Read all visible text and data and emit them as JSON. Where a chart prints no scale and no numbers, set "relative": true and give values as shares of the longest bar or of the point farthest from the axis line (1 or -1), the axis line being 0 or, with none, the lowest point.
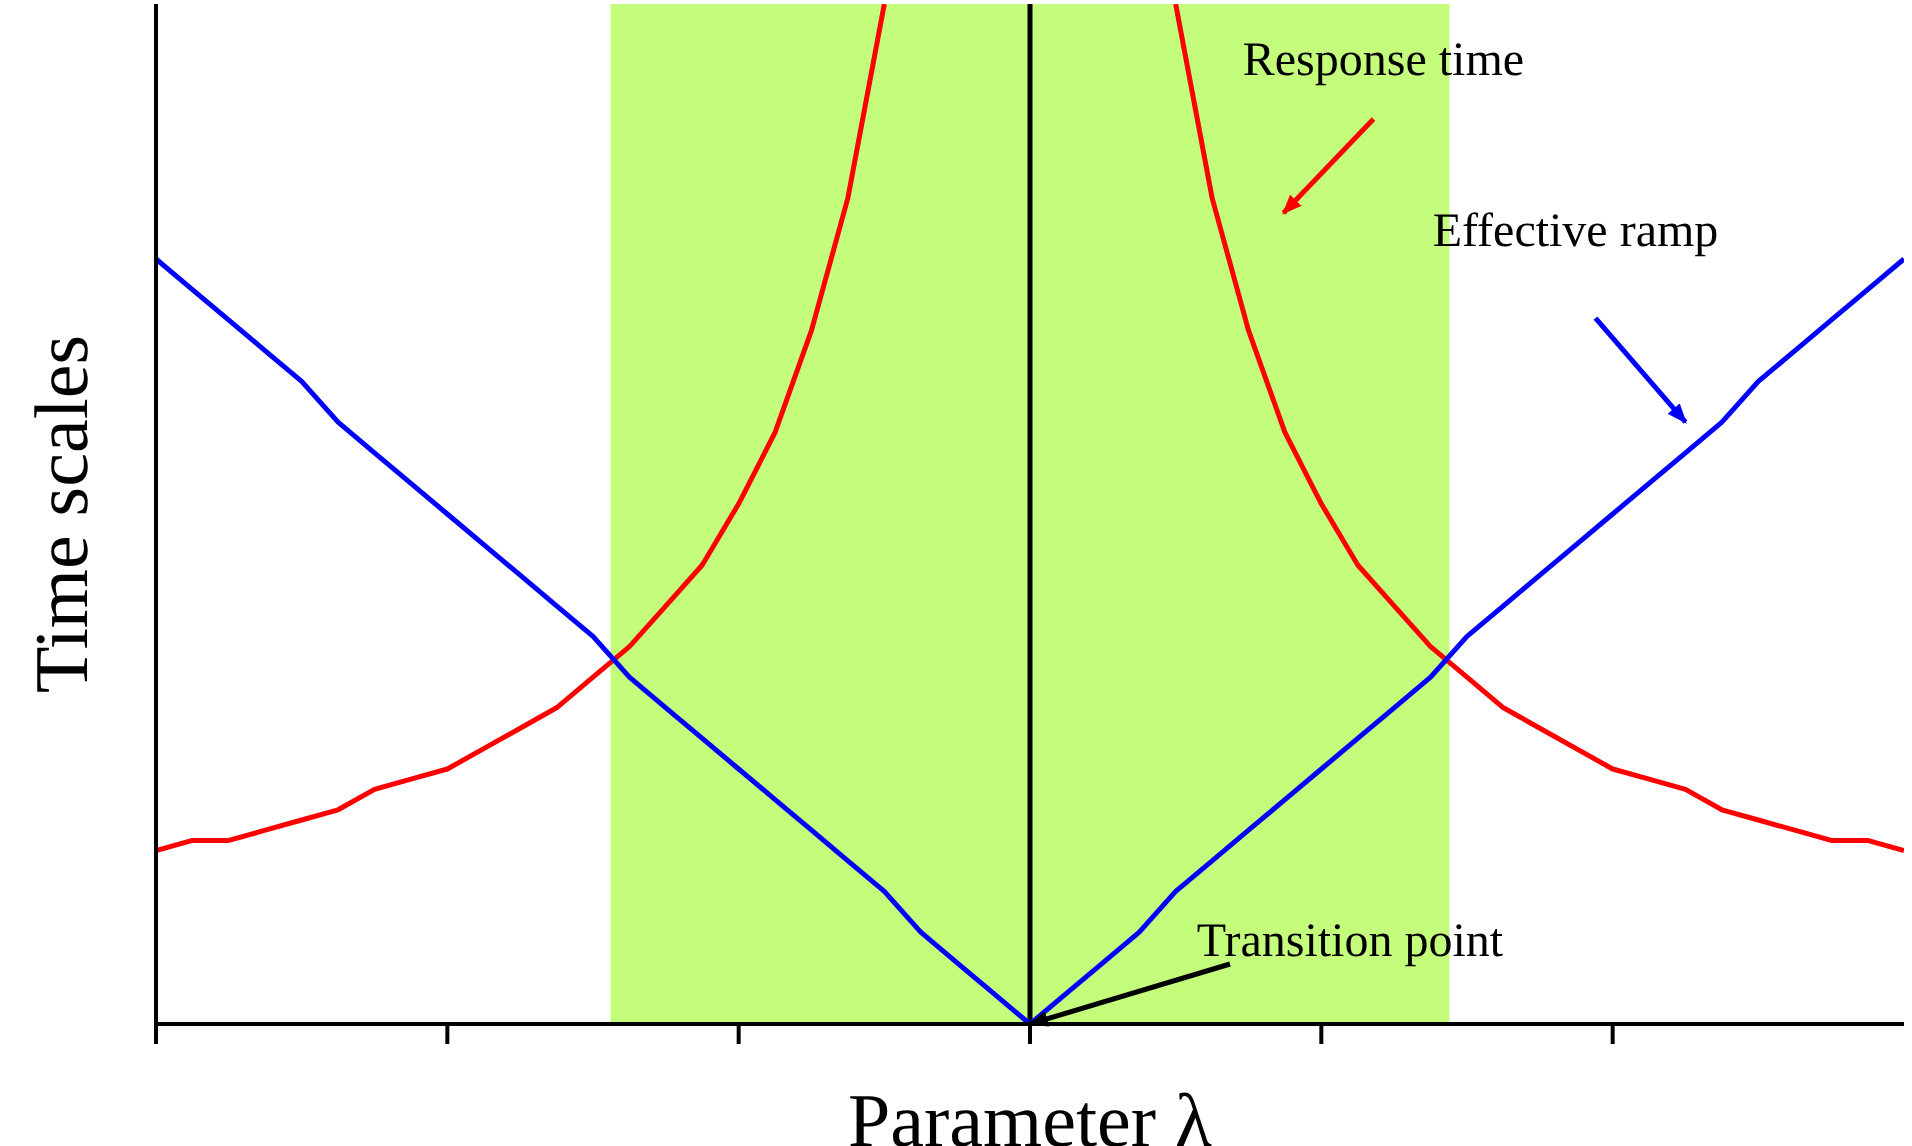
{
  "chart_data": {
    "type": "line",
    "relative": true,
    "xlabel": "Parameter λ",
    "ylabel": "Time scales",
    "marker": "none",
    "line_style": "solid",
    "categories": [
      null,
      null,
      null,
      null,
      null,
      null,
      null,
      null,
      null,
      null,
      null,
      null,
      null,
      null,
      null,
      null,
      null,
      null,
      null,
      null,
      null,
      null,
      null,
      null,
      null,
      null,
      null,
      null,
      null,
      null,
      null,
      null,
      null,
      null,
      null,
      null,
      null,
      null,
      null,
      null,
      null,
      null,
      null,
      null,
      null,
      null,
      null,
      null,
      null
    ],
    "series": [
      {
        "color": "#ff0000",
        "values": [
          0.17,
          0.18,
          0.18,
          0.19,
          0.2,
          0.21,
          0.23,
          0.24,
          0.25,
          0.27,
          0.29,
          0.31,
          0.34,
          0.37,
          0.41,
          0.45,
          0.51,
          0.58,
          0.68,
          0.81,
          1.0,
          null,
          null,
          null,
          null,
          null,
          null,
          null,
          1.0,
          0.81,
          0.68,
          0.58,
          0.51,
          0.45,
          0.41,
          0.37,
          0.34,
          0.31,
          0.29,
          0.27,
          0.25,
          0.24,
          0.23,
          0.21,
          0.2,
          0.19,
          0.18,
          0.18,
          0.17
        ]
      },
      {
        "color": "#0000ff",
        "values": [
          0.75,
          0.72,
          0.69,
          0.66,
          0.63,
          0.59,
          0.56,
          0.53,
          0.5,
          0.47,
          0.44,
          0.41,
          0.38,
          0.34,
          0.31,
          0.28,
          0.25,
          0.22,
          0.19,
          0.16,
          0.13,
          0.09,
          0.06,
          0.03,
          0,
          0.03,
          0.06,
          0.09,
          0.13,
          0.16,
          0.19,
          0.22,
          0.25,
          0.28,
          0.31,
          0.34,
          0.38,
          0.41,
          0.44,
          0.47,
          0.5,
          0.53,
          0.56,
          0.59,
          0.63,
          0.66,
          0.69,
          0.72,
          0.75
        ]
      }
    ],
    "annotations": [
      "Response time",
      "Effective ramp",
      "Transition point"
    ]
  }
}
